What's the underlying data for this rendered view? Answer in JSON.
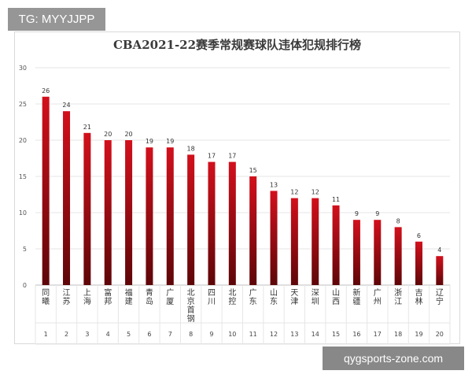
{
  "watermarks": {
    "top_left": "TG: MYYJJPP",
    "bottom_right": "qygsports-zone.com"
  },
  "colors": {
    "bar_top": "#d2101c",
    "bar_bottom": "#5e0608",
    "grid": "#e6e6e6",
    "axis": "#bfbfbf"
  },
  "chart_data": {
    "type": "bar",
    "title": "CBA2021-22赛季常规赛球队违体犯规排行榜",
    "xlabel": "",
    "ylabel": "",
    "ylim": [
      0,
      30
    ],
    "yticks": [
      0,
      5,
      10,
      15,
      20,
      25,
      30
    ],
    "grid": true,
    "categories": [
      "同曦",
      "江苏",
      "上海",
      "富邦",
      "福建",
      "青岛",
      "广厦",
      "北京首钢",
      "四川",
      "北控",
      "广东",
      "山东",
      "天津",
      "深圳",
      "山西",
      "新疆",
      "广州",
      "浙江",
      "吉林",
      "辽宁"
    ],
    "ranks": [
      "1",
      "2",
      "3",
      "4",
      "5",
      "6",
      "7",
      "8",
      "9",
      "10",
      "11",
      "12",
      "13",
      "14",
      "15",
      "16",
      "17",
      "18",
      "19",
      "20"
    ],
    "values": [
      26,
      24,
      21,
      20,
      20,
      19,
      19,
      18,
      17,
      17,
      15,
      13,
      12,
      12,
      11,
      9,
      9,
      8,
      6,
      4
    ]
  }
}
